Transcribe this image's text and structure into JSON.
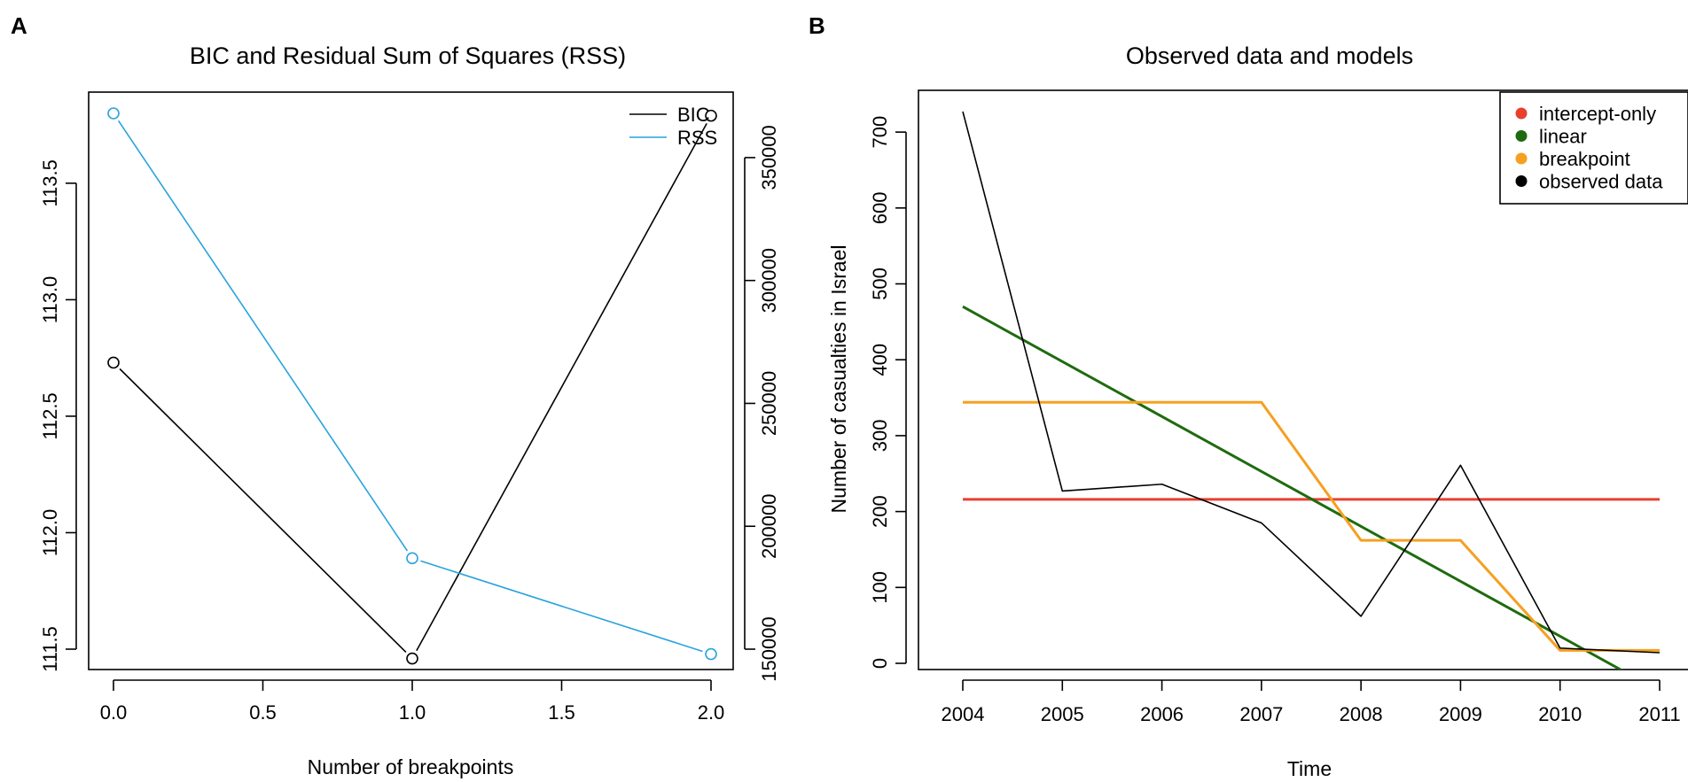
{
  "chart_data": [
    {
      "panel": "A",
      "type": "line",
      "title": "BIC and Residual Sum of Squares (RSS)",
      "xlabel": "Number of breakpoints",
      "ylabel": "",
      "x": [
        0,
        1,
        2
      ],
      "xticks": [
        "0.0",
        "0.5",
        "1.0",
        "1.5",
        "2.0"
      ],
      "xtick_values": [
        0,
        0.5,
        1,
        1.5,
        2
      ],
      "ylim": [
        111.5,
        113.8
      ],
      "yticks": [
        "111.5",
        "112.0",
        "112.5",
        "113.0",
        "113.5"
      ],
      "ytick_values": [
        111.5,
        112.0,
        112.5,
        113.0,
        113.5
      ],
      "y2lim": [
        150000,
        368000
      ],
      "y2ticks": [
        "150000",
        "200000",
        "250000",
        "300000",
        "350000"
      ],
      "y2tick_values": [
        150000,
        200000,
        250000,
        300000,
        350000
      ],
      "series": [
        {
          "name": "BIC",
          "axis": "left",
          "color": "#000000",
          "values": [
            112.73,
            111.46,
            113.79
          ]
        },
        {
          "name": "RSS",
          "axis": "right",
          "color": "#29a3dc",
          "values": [
            368000,
            187000,
            148000
          ]
        }
      ],
      "legend": [
        "BIC",
        "RSS"
      ],
      "legend_position": "top-right",
      "grid": false
    },
    {
      "panel": "B",
      "type": "line",
      "title": "Observed data and models",
      "xlabel": "Time",
      "ylabel": "Number of casualties in Israel",
      "x": [
        2004,
        2005,
        2006,
        2007,
        2008,
        2009,
        2010,
        2011
      ],
      "xticks": [
        "2004",
        "2005",
        "2006",
        "2007",
        "2008",
        "2009",
        "2010",
        "2011"
      ],
      "xtick_values": [
        2004,
        2005,
        2006,
        2007,
        2008,
        2009,
        2010,
        2011
      ],
      "ylim": [
        0,
        727
      ],
      "yticks": [
        "0",
        "100",
        "200",
        "300",
        "400",
        "500",
        "600",
        "700"
      ],
      "ytick_values": [
        0,
        100,
        200,
        300,
        400,
        500,
        600,
        700
      ],
      "series": [
        {
          "name": "intercept-only",
          "color": "#e8402f",
          "x": [
            2004,
            2011
          ],
          "values": [
            216,
            216
          ]
        },
        {
          "name": "linear",
          "color": "#1e6b0f",
          "x": [
            2004,
            2010.7
          ],
          "values": [
            470,
            -15
          ]
        },
        {
          "name": "breakpoint",
          "color": "#f5a020",
          "x": [
            2004,
            2007,
            2008,
            2009,
            2010,
            2011
          ],
          "values": [
            344,
            344,
            162,
            162,
            17,
            17
          ]
        },
        {
          "name": "observed data",
          "color": "#000000",
          "x": [
            2004,
            2005,
            2006,
            2007,
            2008,
            2009,
            2010,
            2011
          ],
          "values": [
            727,
            227,
            236,
            185,
            62,
            261,
            20,
            14
          ]
        }
      ],
      "legend": [
        "intercept-only",
        "linear",
        "breakpoint",
        "observed data"
      ],
      "legend_position": "top-right",
      "grid": false
    }
  ],
  "panels": {
    "a": {
      "letter": "A"
    },
    "b": {
      "letter": "B"
    }
  }
}
